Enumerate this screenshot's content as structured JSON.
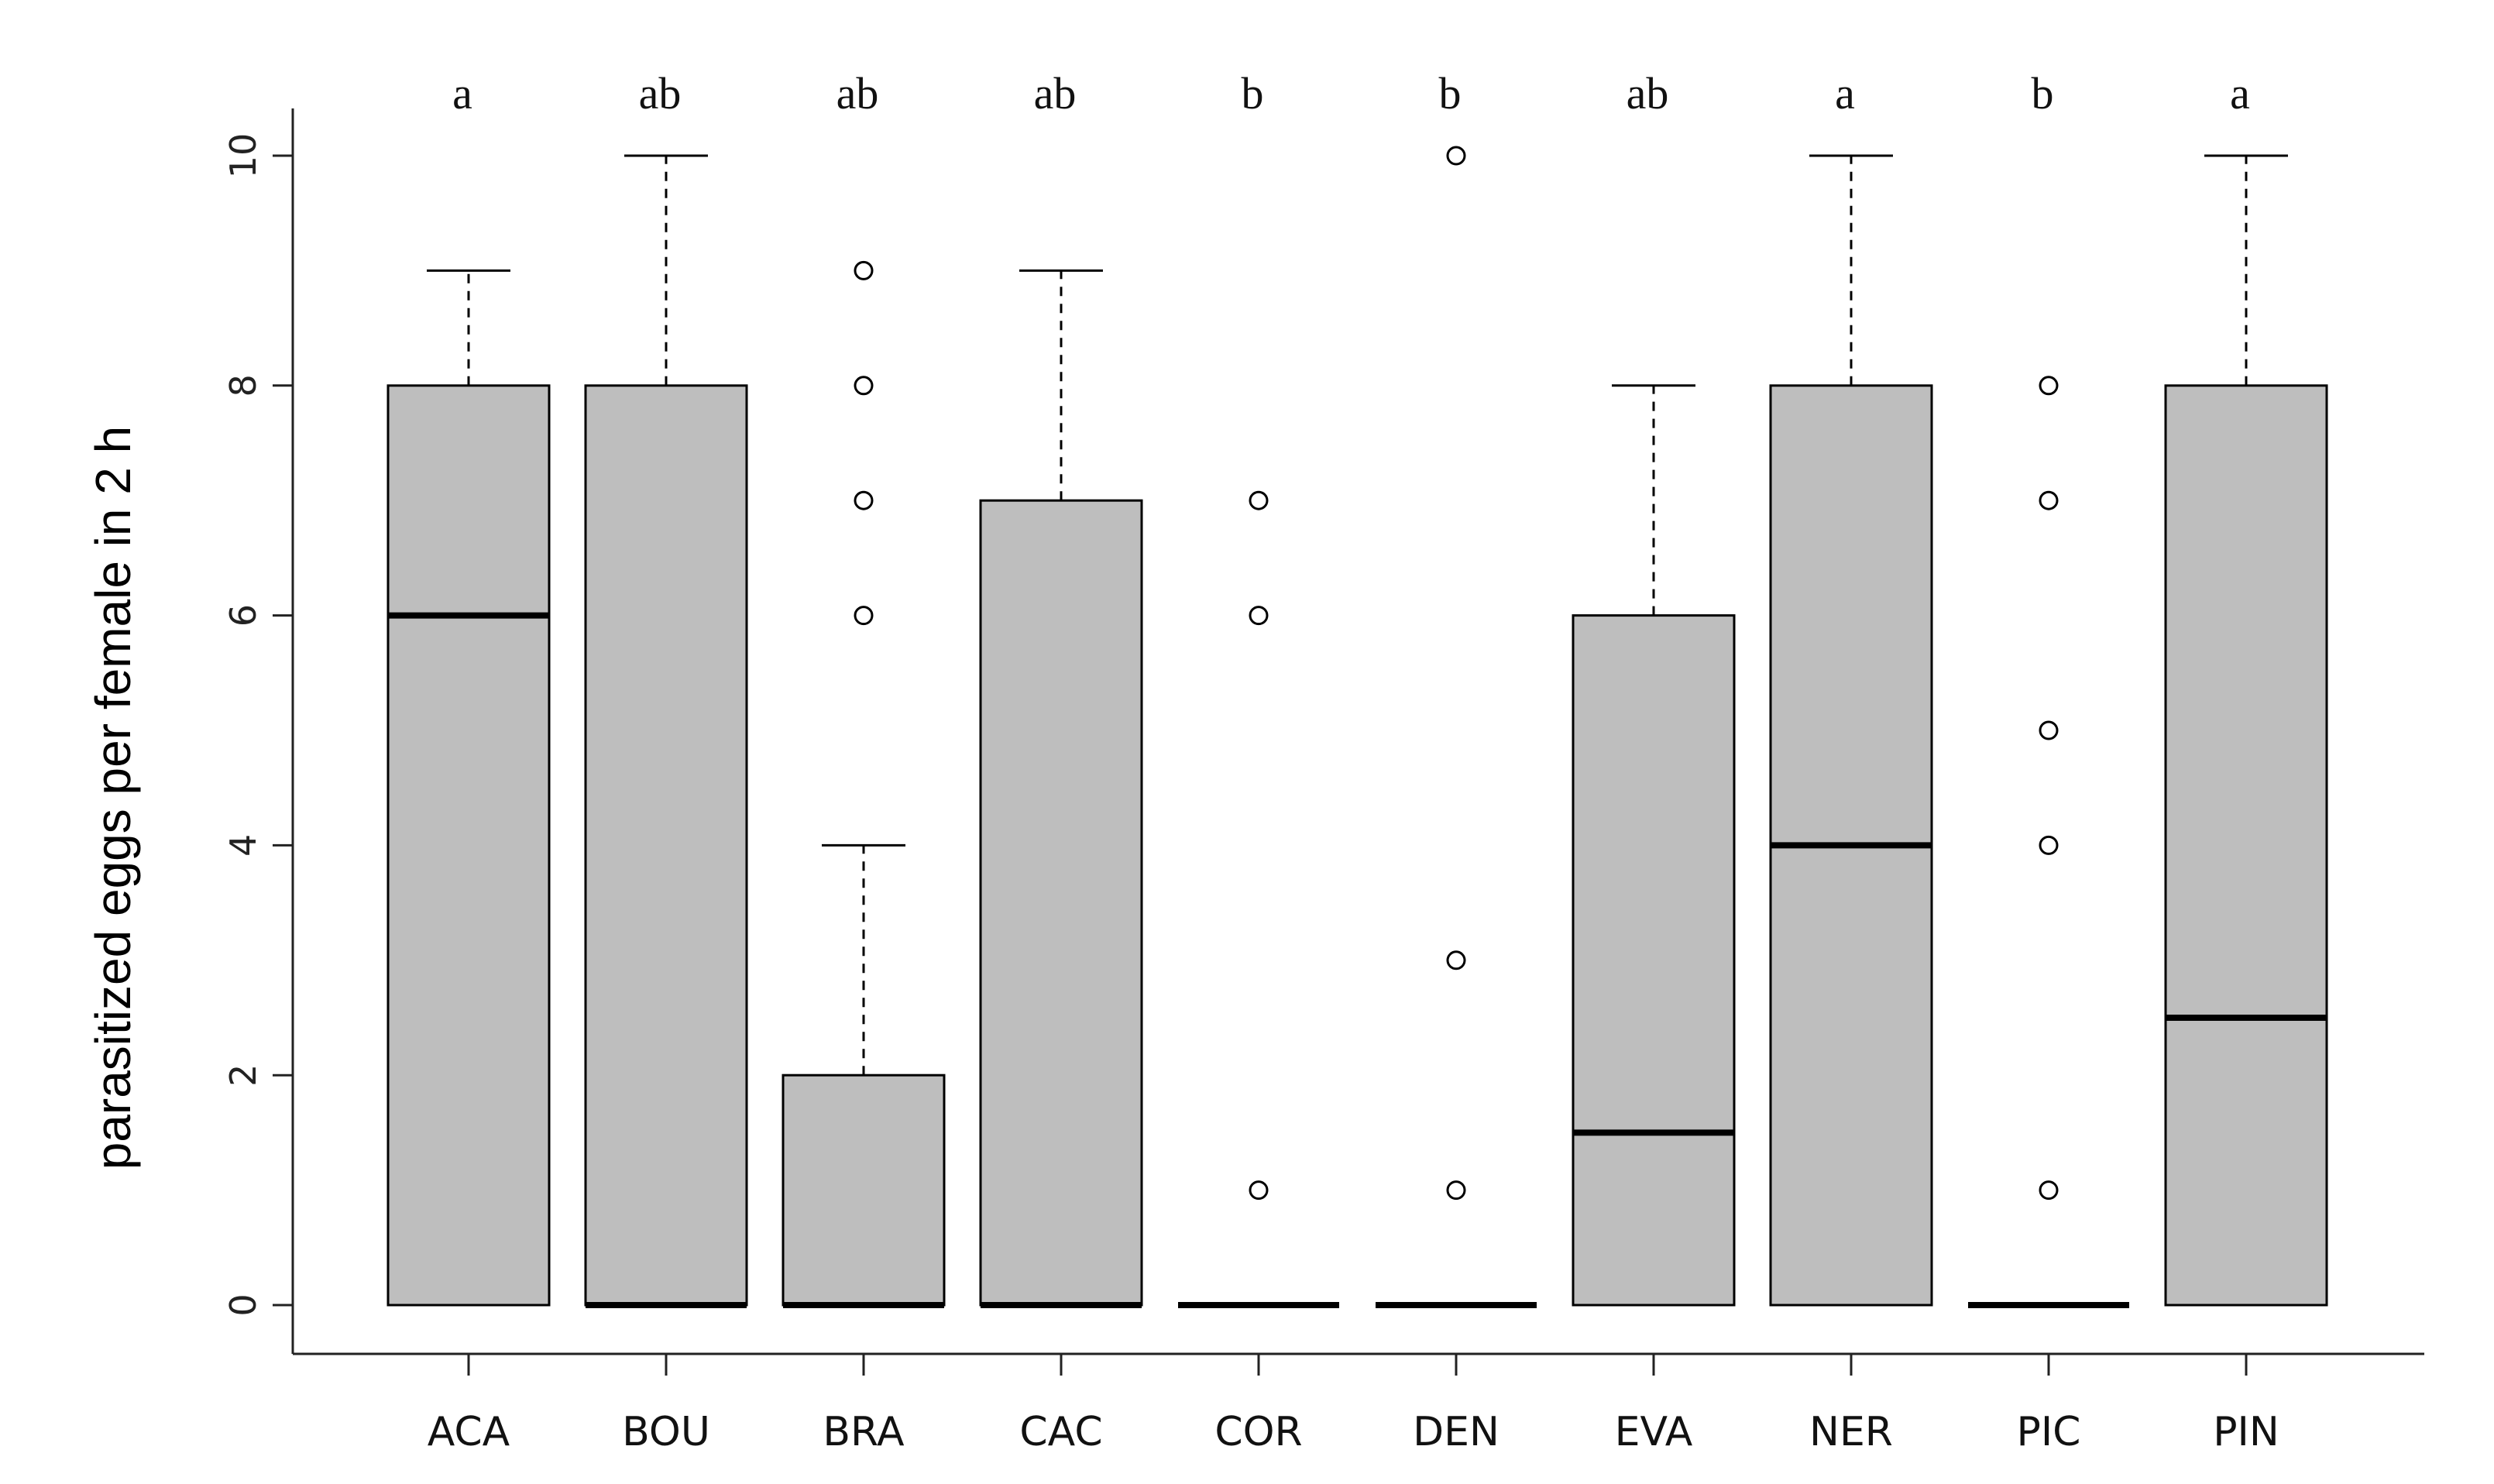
{
  "chart_data": {
    "type": "boxplot",
    "title": "",
    "xlabel": "",
    "ylabel": "parasitized eggs per female in 2 h",
    "ylim": [
      0,
      10
    ],
    "yticks": [
      0,
      2,
      4,
      6,
      8,
      10
    ],
    "colors": {
      "box_fill": "#bebebe",
      "stroke": "#000000"
    },
    "categories": [
      "ACA",
      "BOU",
      "BRA",
      "CAC",
      "COR",
      "DEN",
      "EVA",
      "NER",
      "PIC",
      "PIN"
    ],
    "letters": [
      "a",
      "ab",
      "ab",
      "ab",
      "b",
      "b",
      "ab",
      "a",
      "b",
      "a"
    ],
    "boxes": [
      {
        "q1": 0,
        "median": 6,
        "q3": 8,
        "whisker_low": 0,
        "whisker_high": 9,
        "outliers": []
      },
      {
        "q1": 0,
        "median": 0,
        "q3": 8,
        "whisker_low": 0,
        "whisker_high": 10,
        "outliers": []
      },
      {
        "q1": 0,
        "median": 0,
        "q3": 2,
        "whisker_low": 0,
        "whisker_high": 4,
        "outliers": [
          6,
          7,
          8,
          9
        ]
      },
      {
        "q1": 0,
        "median": 0,
        "q3": 7,
        "whisker_low": 0,
        "whisker_high": 9,
        "outliers": []
      },
      {
        "q1": 0,
        "median": 0,
        "q3": 0,
        "whisker_low": 0,
        "whisker_high": 0,
        "outliers": [
          1,
          6,
          7
        ]
      },
      {
        "q1": 0,
        "median": 0,
        "q3": 0,
        "whisker_low": 0,
        "whisker_high": 0,
        "outliers": [
          1,
          3,
          10
        ]
      },
      {
        "q1": 0,
        "median": 1.5,
        "q3": 6,
        "whisker_low": 0,
        "whisker_high": 8,
        "outliers": []
      },
      {
        "q1": 0,
        "median": 4,
        "q3": 8,
        "whisker_low": 0,
        "whisker_high": 10,
        "outliers": []
      },
      {
        "q1": 0,
        "median": 0,
        "q3": 0,
        "whisker_low": 0,
        "whisker_high": 0,
        "outliers": [
          1,
          4,
          5,
          7,
          8
        ]
      },
      {
        "q1": 0,
        "median": 2.5,
        "q3": 8,
        "whisker_low": 0,
        "whisker_high": 10,
        "outliers": []
      }
    ]
  }
}
